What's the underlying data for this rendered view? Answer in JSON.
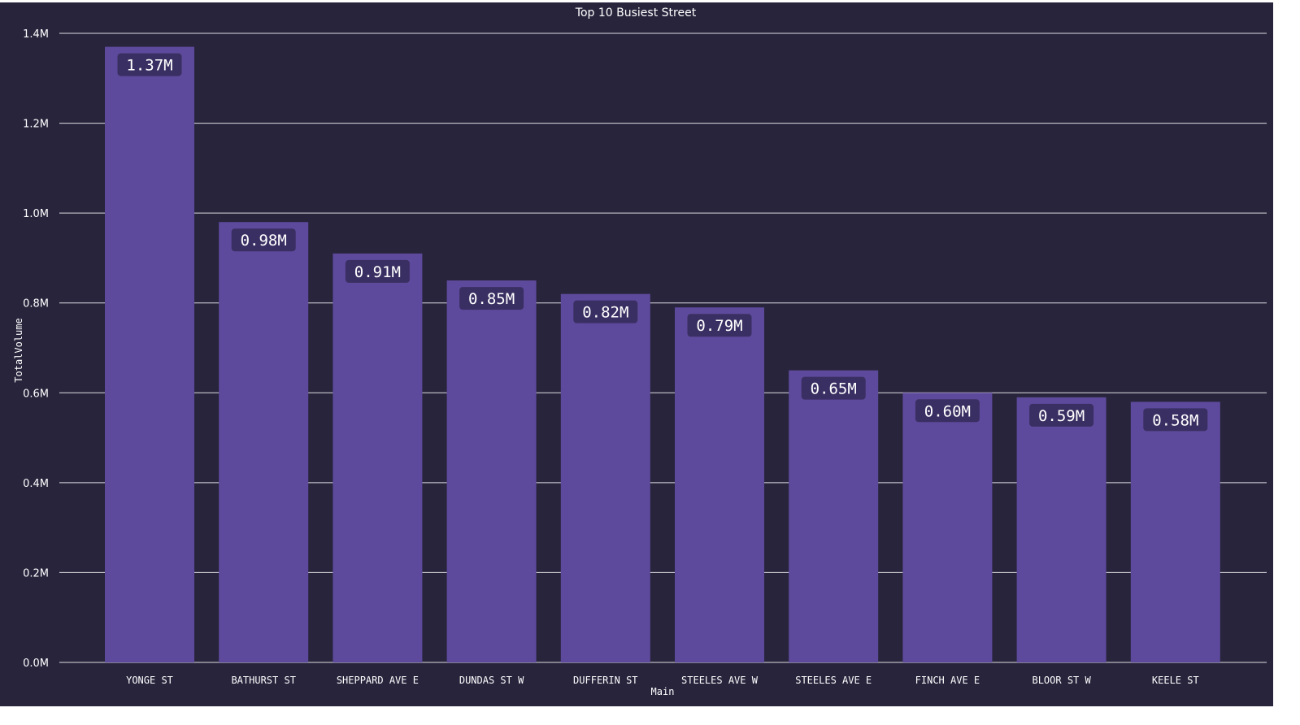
{
  "chart_data": {
    "type": "bar",
    "title": "Top 10 Busiest Street",
    "xlabel": "Main",
    "ylabel": "TotalVolume",
    "categories": [
      "YONGE ST",
      "BATHURST ST",
      "SHEPPARD AVE E",
      "DUNDAS ST W",
      "DUFFERIN ST",
      "STEELES AVE W",
      "STEELES AVE E",
      "FINCH AVE E",
      "BLOOR ST W",
      "KEELE ST"
    ],
    "values": [
      1.37,
      0.98,
      0.91,
      0.85,
      0.82,
      0.79,
      0.65,
      0.6,
      0.59,
      0.58
    ],
    "value_labels": [
      "1.37M",
      "0.98M",
      "0.91M",
      "0.85M",
      "0.82M",
      "0.79M",
      "0.65M",
      "0.60M",
      "0.59M",
      "0.58M"
    ],
    "yticks": [
      0,
      0.2,
      0.4,
      0.6,
      0.8,
      1.0,
      1.2,
      1.4
    ],
    "ytick_labels": [
      "0.0M",
      "0.2M",
      "0.4M",
      "0.6M",
      "0.8M",
      "1.0M",
      "1.2M",
      "1.4M"
    ],
    "ylim": [
      0,
      1.4
    ],
    "grid": true,
    "legend": "none",
    "colors": {
      "background": "#28243c",
      "bar": "#5e4a9c",
      "label_box": "#3a2f62",
      "grid": "#ffffff",
      "text": "#ffffff"
    }
  }
}
